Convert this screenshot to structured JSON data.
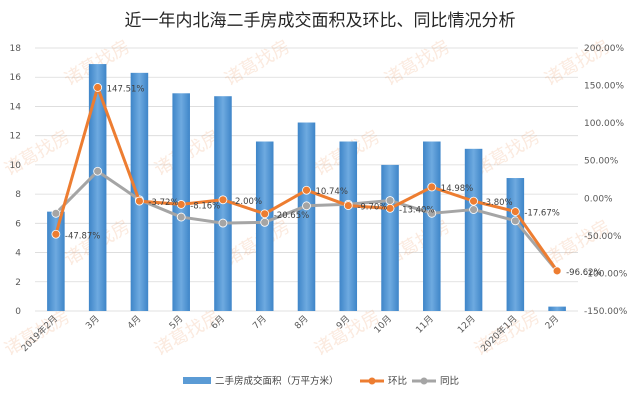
{
  "chart_data": {
    "type": "bar",
    "title": "近一年内北海二手房成交面积及环比、同比情况分析",
    "categories": [
      "2019年2月",
      "3月",
      "4月",
      "5月",
      "6月",
      "7月",
      "8月",
      "9月",
      "10月",
      "11月",
      "12月",
      "2020年1月",
      "2月"
    ],
    "series": [
      {
        "name": "二手房成交面积（万平方米）",
        "type": "bar",
        "axis": "left",
        "color": "#5B9BD5",
        "values": [
          6.8,
          16.9,
          16.3,
          14.9,
          14.7,
          11.6,
          12.9,
          11.6,
          10.0,
          11.6,
          11.1,
          9.1,
          0.3
        ]
      },
      {
        "name": "环比",
        "type": "line",
        "axis": "right",
        "color": "#ED7D31",
        "values": [
          -47.87,
          147.51,
          -3.72,
          -8.16,
          -2.0,
          -20.65,
          10.74,
          -9.7,
          -13.4,
          14.98,
          -3.8,
          -17.67,
          -96.62
        ],
        "labels": [
          "-47.87%",
          "147.51%",
          "-3.72%",
          "-8.16%",
          "-2.00%",
          "-20.65%",
          "10.74%",
          "-9.70%",
          "-13.40%",
          "14.98%",
          "-3.80%",
          "-17.67%",
          "-96.62%"
        ]
      },
      {
        "name": "同比",
        "type": "line",
        "axis": "right",
        "color": "#A5A5A5",
        "values": [
          -20,
          36,
          -2,
          -25,
          -33,
          -32,
          -10,
          -8,
          -3,
          -20,
          -15,
          -30,
          -97
        ]
      }
    ],
    "y_left": {
      "min": 0,
      "max": 18,
      "step": 2,
      "ticks": [
        "0",
        "2",
        "4",
        "6",
        "8",
        "10",
        "12",
        "14",
        "16",
        "18"
      ]
    },
    "y_right": {
      "min": -150,
      "max": 200,
      "step": 50,
      "ticks": [
        "-150.00%",
        "-100.00%",
        "-50.00%",
        "0.00%",
        "50.00%",
        "100.00%",
        "150.00%",
        "200.00%"
      ]
    },
    "grid": true,
    "legend": "bottom",
    "watermark": "诸葛找房"
  }
}
